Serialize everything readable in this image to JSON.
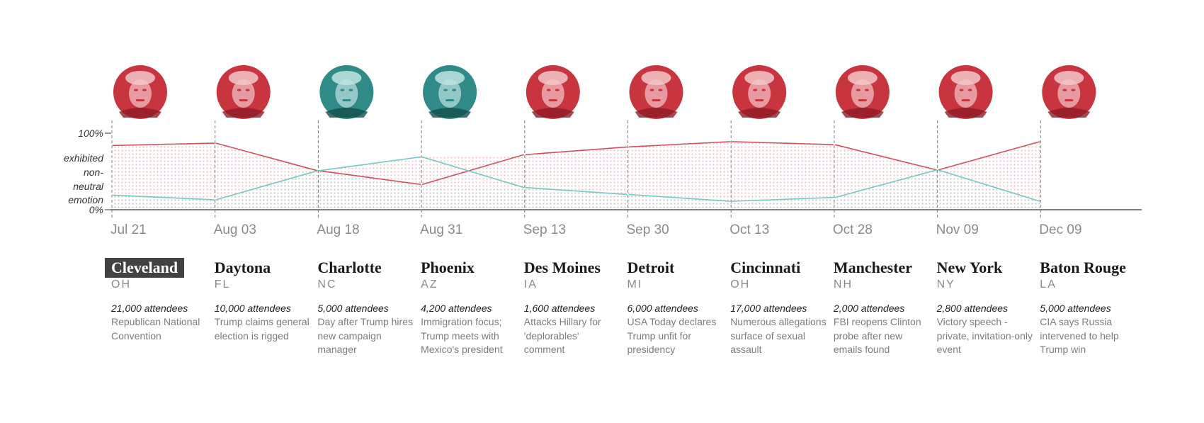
{
  "chart_data": {
    "type": "line",
    "y_axis": {
      "top_label": "100%",
      "bottom_label": "0%",
      "title_lines": [
        "exhibited",
        "non-",
        "neutral",
        "emotion"
      ],
      "ylim": [
        0,
        100
      ]
    },
    "series": [
      {
        "color": "#d0505a",
        "segments": [
          [
            84,
            87
          ],
          [
            87,
            51
          ],
          [
            51,
            33
          ],
          [
            33,
            72
          ],
          [
            72,
            82
          ],
          [
            82,
            89
          ],
          [
            89,
            85
          ],
          [
            85,
            52
          ],
          [
            52,
            89
          ]
        ]
      },
      {
        "color": "#74c7c3",
        "segments": [
          [
            19,
            13
          ],
          [
            13,
            51
          ],
          [
            51,
            69
          ],
          [
            69,
            29
          ],
          [
            29,
            20
          ],
          [
            20,
            11
          ],
          [
            11,
            16
          ],
          [
            16,
            52
          ],
          [
            52,
            11
          ]
        ]
      }
    ],
    "x_dates": [
      "Jul 21",
      "Aug 03",
      "Aug 18",
      "Aug 31",
      "Sep 13",
      "Sep 30",
      "Oct 13",
      "Oct 28",
      "Nov 09",
      "Dec 09"
    ],
    "grid_lines": true
  },
  "portraits": [
    {
      "tone": "red"
    },
    {
      "tone": "red"
    },
    {
      "tone": "teal"
    },
    {
      "tone": "teal"
    },
    {
      "tone": "red"
    },
    {
      "tone": "red"
    },
    {
      "tone": "red"
    },
    {
      "tone": "red"
    },
    {
      "tone": "red"
    },
    {
      "tone": "red"
    }
  ],
  "colors": {
    "red": "#d0505a",
    "teal": "#74c7c3",
    "red_face": "#c8353f",
    "teal_face": "#2f8a88",
    "axis": "#555555"
  },
  "events": [
    {
      "city": "Cleveland",
      "state": "OH",
      "attendees": "21,000 attendees",
      "description": "Republican National Convention",
      "selected": true
    },
    {
      "city": "Daytona",
      "state": "FL",
      "attendees": "10,000 attendees",
      "description": "Trump claims general election is rigged",
      "selected": false
    },
    {
      "city": "Charlotte",
      "state": "NC",
      "attendees": "5,000 attendees",
      "description": "Day after Trump hires new campaign manager",
      "selected": false
    },
    {
      "city": "Phoenix",
      "state": "AZ",
      "attendees": "4,200 attendees",
      "description": "Immigration focus; Trump meets with Mexico's president",
      "selected": false
    },
    {
      "city": "Des Moines",
      "state": "IA",
      "attendees": "1,600 attendees",
      "description": "Attacks Hillary for 'deplorables' comment",
      "selected": false
    },
    {
      "city": "Detroit",
      "state": "MI",
      "attendees": "6,000 attendees",
      "description": "USA Today declares Trump unfit for presidency",
      "selected": false
    },
    {
      "city": "Cincinnati",
      "state": "OH",
      "attendees": "17,000 attendees",
      "description": "Numerous allegations surface of sexual assault",
      "selected": false
    },
    {
      "city": "Manchester",
      "state": "NH",
      "attendees": "2,000 attendees",
      "description": "FBI reopens Clinton probe after new emails found",
      "selected": false
    },
    {
      "city": "New York",
      "state": "NY",
      "attendees": "2,800 attendees",
      "description": "Victory speech - private, invitation-only event",
      "selected": false
    },
    {
      "city": "Baton Rouge",
      "state": "LA",
      "attendees": "5,000 attendees",
      "description": "CIA says Russia intervened to help Trump win",
      "selected": false
    }
  ]
}
